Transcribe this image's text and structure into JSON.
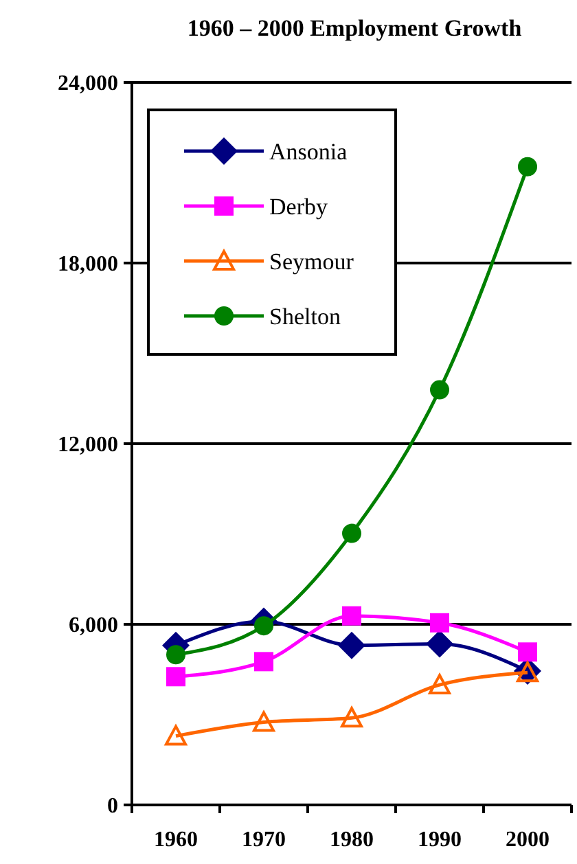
{
  "chart_data": {
    "type": "line",
    "title": "1960 – 2000 Employment Growth",
    "categories": [
      "1960",
      "1970",
      "1980",
      "1990",
      "2000"
    ],
    "ylim": [
      0,
      24000
    ],
    "yticks": [
      {
        "value": 0,
        "label": "0"
      },
      {
        "value": 6000,
        "label": "6,000"
      },
      {
        "value": 12000,
        "label": "12,000"
      },
      {
        "value": 18000,
        "label": "18,000"
      },
      {
        "value": 24000,
        "label": "24,000"
      }
    ],
    "grid": "y",
    "legend": "top left",
    "series": [
      {
        "name": "Ansonia",
        "color": "#000080",
        "marker": "diamond",
        "values": [
          5300,
          6100,
          5300,
          5350,
          4450
        ]
      },
      {
        "name": "Derby",
        "color": "#ff00ff",
        "marker": "square",
        "values": [
          4260,
          4760,
          6280,
          6050,
          5080
        ]
      },
      {
        "name": "Seymour",
        "color": "#ff6600",
        "marker": "triangle",
        "values": [
          2290,
          2750,
          2890,
          3990,
          4400
        ]
      },
      {
        "name": "Shelton",
        "color": "#008000",
        "marker": "circle",
        "values": [
          4990,
          5950,
          9020,
          13790,
          21200
        ]
      }
    ]
  }
}
